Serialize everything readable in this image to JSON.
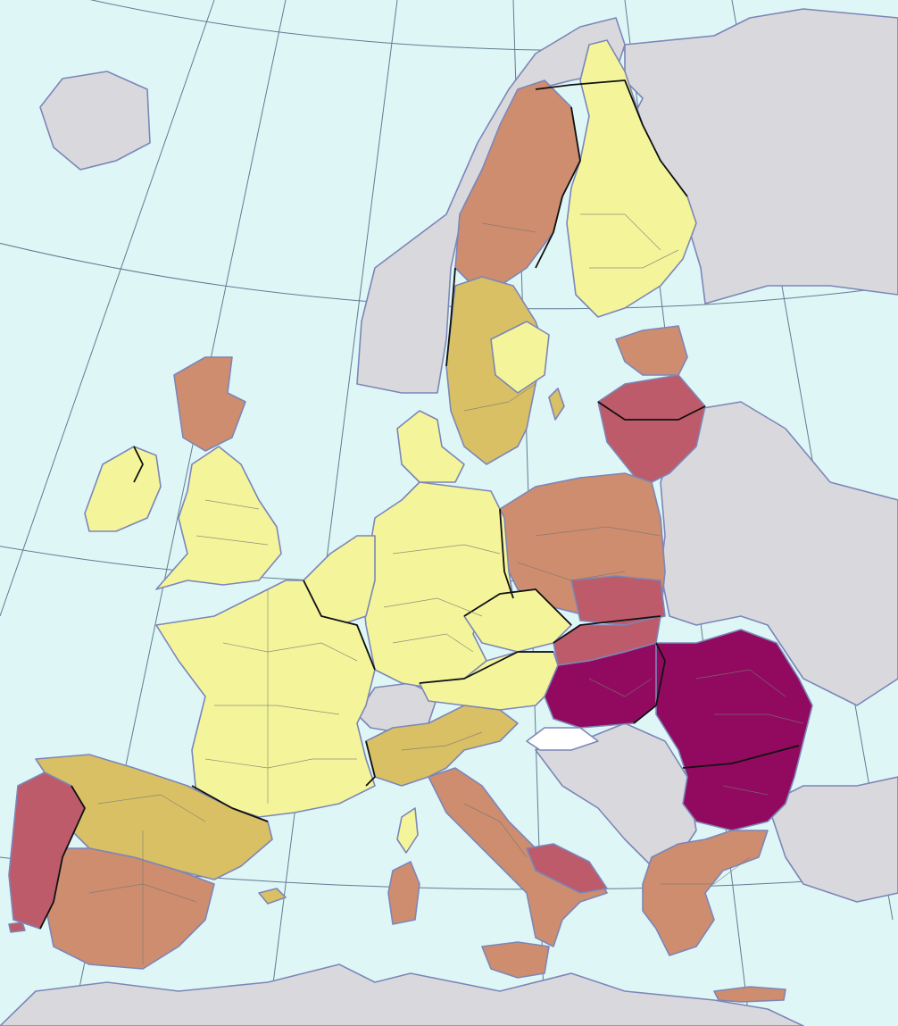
{
  "map": {
    "colors": {
      "sea": "#dff6f7",
      "non_eu_land": "#d9d9dd",
      "no_data": "#ffffff",
      "coastline": "#7c86b8",
      "graticule": "#5f7c91",
      "class_1": "#f4f59a",
      "class_2": "#d9c064",
      "class_3": "#ce8d6e",
      "class_4": "#bd5b6a",
      "class_5": "#910a5f"
    },
    "regions": [
      {
        "name": "iceland",
        "class": "non_eu"
      },
      {
        "name": "norway",
        "class": "non_eu"
      },
      {
        "name": "russia-north",
        "class": "non_eu"
      },
      {
        "name": "belarus-ukraine",
        "class": "non_eu"
      },
      {
        "name": "north-africa",
        "class": "non_eu"
      },
      {
        "name": "turkey",
        "class": "non_eu"
      },
      {
        "name": "switzerland",
        "class": "non_eu"
      },
      {
        "name": "western-balkans",
        "class": "non_eu"
      },
      {
        "name": "finland",
        "class": "class_1"
      },
      {
        "name": "sweden-north",
        "class": "class_3"
      },
      {
        "name": "sweden-south",
        "class": "class_2"
      },
      {
        "name": "sweden-middle",
        "class": "class_1"
      },
      {
        "name": "estonia",
        "class": "class_3"
      },
      {
        "name": "latvia-lithuania",
        "class": "class_4"
      },
      {
        "name": "poland",
        "class": "class_3"
      },
      {
        "name": "poland-east",
        "class": "class_4"
      },
      {
        "name": "germany",
        "class": "class_1"
      },
      {
        "name": "denmark",
        "class": "class_1"
      },
      {
        "name": "benelux",
        "class": "class_1"
      },
      {
        "name": "czechia",
        "class": "class_1"
      },
      {
        "name": "austria",
        "class": "class_1"
      },
      {
        "name": "slovakia",
        "class": "class_4"
      },
      {
        "name": "hungary",
        "class": "class_5"
      },
      {
        "name": "romania-bulgaria",
        "class": "class_5"
      },
      {
        "name": "slovenia",
        "class": "no_data"
      },
      {
        "name": "france",
        "class": "class_1"
      },
      {
        "name": "uk-north",
        "class": "class_3"
      },
      {
        "name": "uk-south",
        "class": "class_1"
      },
      {
        "name": "ireland",
        "class": "class_1"
      },
      {
        "name": "spain-north",
        "class": "class_2"
      },
      {
        "name": "spain-south",
        "class": "class_3"
      },
      {
        "name": "portugal",
        "class": "class_4"
      },
      {
        "name": "italy-north",
        "class": "class_2"
      },
      {
        "name": "italy-south",
        "class": "class_3"
      },
      {
        "name": "puglia",
        "class": "class_4"
      },
      {
        "name": "sardinia",
        "class": "class_3"
      },
      {
        "name": "corsica",
        "class": "class_1"
      },
      {
        "name": "greece",
        "class": "class_3"
      }
    ]
  }
}
